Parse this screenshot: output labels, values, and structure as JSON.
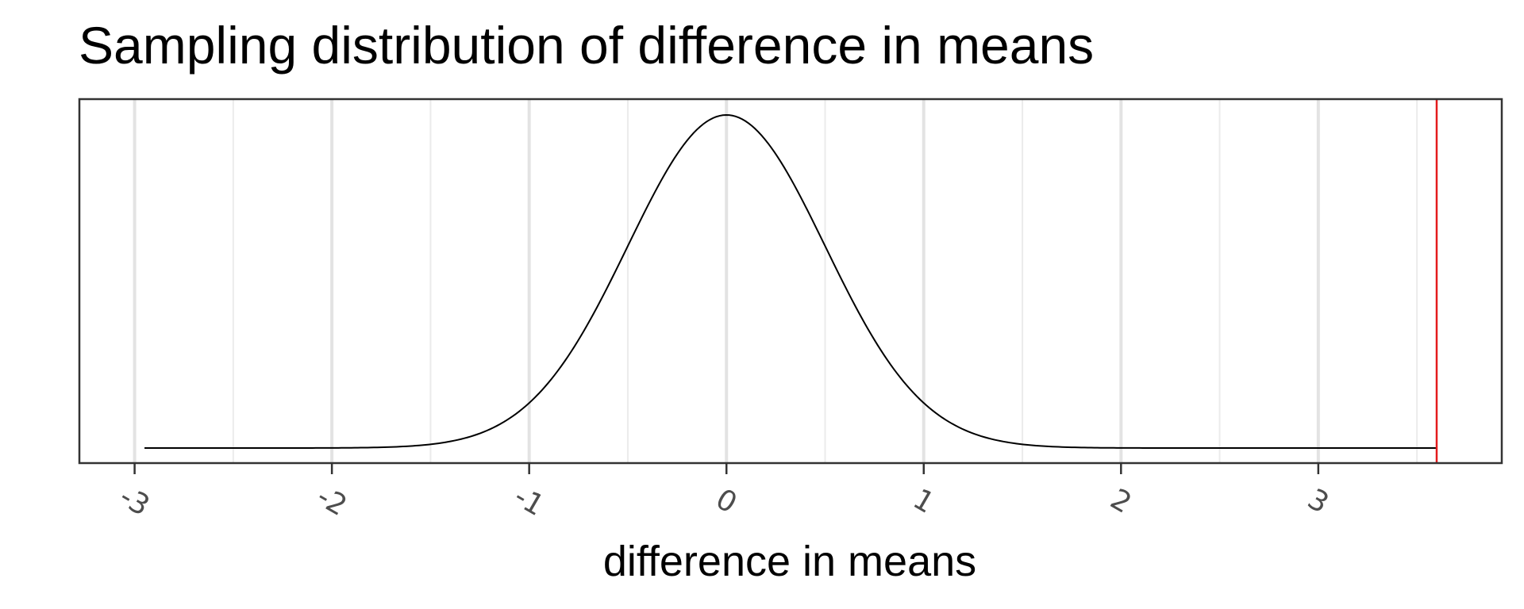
{
  "chart_data": {
    "type": "area",
    "title": "Sampling distribution of difference in means",
    "xlabel": "difference in means",
    "ylabel": "",
    "xlim": [
      -3.28,
      3.93
    ],
    "x_ticks": [
      -3,
      -2,
      -1,
      0,
      1,
      2,
      3
    ],
    "x_tick_labels": [
      "-3",
      "-2",
      "-1",
      "0",
      "1",
      "2",
      "3"
    ],
    "x_minor_gridlines": [
      -2.5,
      -1.5,
      -0.5,
      0.5,
      1.5,
      2.5,
      3.5
    ],
    "y_axis_shown": false,
    "grid": "vertical",
    "series": [
      {
        "distribution": "normal",
        "mean": 0,
        "sd": 0.5,
        "x_range": [
          -2.95,
          3.6
        ],
        "color": "#000000"
      }
    ],
    "annotations": [
      {
        "type": "vertical-line",
        "x": 3.6,
        "color": "#e41a1c"
      }
    ]
  }
}
